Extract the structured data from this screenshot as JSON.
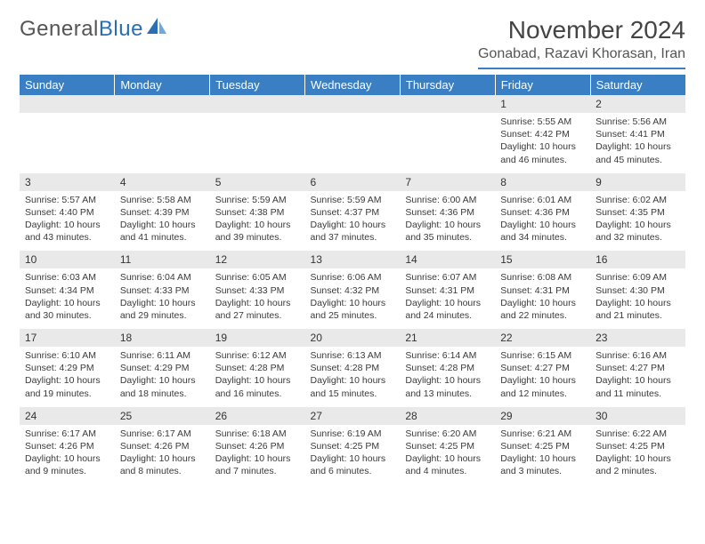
{
  "logo": {
    "text_gray": "General",
    "text_blue": "Blue"
  },
  "title": "November 2024",
  "location": "Gonabad, Razavi Khorasan, Iran",
  "colors": {
    "header_bg": "#3a7fc4",
    "header_text": "#ffffff",
    "daynum_bg": "#e9e9e9",
    "border": "#b8b8b8",
    "text": "#3a3a3a"
  },
  "weekdays": [
    "Sunday",
    "Monday",
    "Tuesday",
    "Wednesday",
    "Thursday",
    "Friday",
    "Saturday"
  ],
  "weeks": [
    [
      {
        "n": "",
        "sr": "",
        "ss": "",
        "dl": ""
      },
      {
        "n": "",
        "sr": "",
        "ss": "",
        "dl": ""
      },
      {
        "n": "",
        "sr": "",
        "ss": "",
        "dl": ""
      },
      {
        "n": "",
        "sr": "",
        "ss": "",
        "dl": ""
      },
      {
        "n": "",
        "sr": "",
        "ss": "",
        "dl": ""
      },
      {
        "n": "1",
        "sr": "Sunrise: 5:55 AM",
        "ss": "Sunset: 4:42 PM",
        "dl": "Daylight: 10 hours and 46 minutes."
      },
      {
        "n": "2",
        "sr": "Sunrise: 5:56 AM",
        "ss": "Sunset: 4:41 PM",
        "dl": "Daylight: 10 hours and 45 minutes."
      }
    ],
    [
      {
        "n": "3",
        "sr": "Sunrise: 5:57 AM",
        "ss": "Sunset: 4:40 PM",
        "dl": "Daylight: 10 hours and 43 minutes."
      },
      {
        "n": "4",
        "sr": "Sunrise: 5:58 AM",
        "ss": "Sunset: 4:39 PM",
        "dl": "Daylight: 10 hours and 41 minutes."
      },
      {
        "n": "5",
        "sr": "Sunrise: 5:59 AM",
        "ss": "Sunset: 4:38 PM",
        "dl": "Daylight: 10 hours and 39 minutes."
      },
      {
        "n": "6",
        "sr": "Sunrise: 5:59 AM",
        "ss": "Sunset: 4:37 PM",
        "dl": "Daylight: 10 hours and 37 minutes."
      },
      {
        "n": "7",
        "sr": "Sunrise: 6:00 AM",
        "ss": "Sunset: 4:36 PM",
        "dl": "Daylight: 10 hours and 35 minutes."
      },
      {
        "n": "8",
        "sr": "Sunrise: 6:01 AM",
        "ss": "Sunset: 4:36 PM",
        "dl": "Daylight: 10 hours and 34 minutes."
      },
      {
        "n": "9",
        "sr": "Sunrise: 6:02 AM",
        "ss": "Sunset: 4:35 PM",
        "dl": "Daylight: 10 hours and 32 minutes."
      }
    ],
    [
      {
        "n": "10",
        "sr": "Sunrise: 6:03 AM",
        "ss": "Sunset: 4:34 PM",
        "dl": "Daylight: 10 hours and 30 minutes."
      },
      {
        "n": "11",
        "sr": "Sunrise: 6:04 AM",
        "ss": "Sunset: 4:33 PM",
        "dl": "Daylight: 10 hours and 29 minutes."
      },
      {
        "n": "12",
        "sr": "Sunrise: 6:05 AM",
        "ss": "Sunset: 4:33 PM",
        "dl": "Daylight: 10 hours and 27 minutes."
      },
      {
        "n": "13",
        "sr": "Sunrise: 6:06 AM",
        "ss": "Sunset: 4:32 PM",
        "dl": "Daylight: 10 hours and 25 minutes."
      },
      {
        "n": "14",
        "sr": "Sunrise: 6:07 AM",
        "ss": "Sunset: 4:31 PM",
        "dl": "Daylight: 10 hours and 24 minutes."
      },
      {
        "n": "15",
        "sr": "Sunrise: 6:08 AM",
        "ss": "Sunset: 4:31 PM",
        "dl": "Daylight: 10 hours and 22 minutes."
      },
      {
        "n": "16",
        "sr": "Sunrise: 6:09 AM",
        "ss": "Sunset: 4:30 PM",
        "dl": "Daylight: 10 hours and 21 minutes."
      }
    ],
    [
      {
        "n": "17",
        "sr": "Sunrise: 6:10 AM",
        "ss": "Sunset: 4:29 PM",
        "dl": "Daylight: 10 hours and 19 minutes."
      },
      {
        "n": "18",
        "sr": "Sunrise: 6:11 AM",
        "ss": "Sunset: 4:29 PM",
        "dl": "Daylight: 10 hours and 18 minutes."
      },
      {
        "n": "19",
        "sr": "Sunrise: 6:12 AM",
        "ss": "Sunset: 4:28 PM",
        "dl": "Daylight: 10 hours and 16 minutes."
      },
      {
        "n": "20",
        "sr": "Sunrise: 6:13 AM",
        "ss": "Sunset: 4:28 PM",
        "dl": "Daylight: 10 hours and 15 minutes."
      },
      {
        "n": "21",
        "sr": "Sunrise: 6:14 AM",
        "ss": "Sunset: 4:28 PM",
        "dl": "Daylight: 10 hours and 13 minutes."
      },
      {
        "n": "22",
        "sr": "Sunrise: 6:15 AM",
        "ss": "Sunset: 4:27 PM",
        "dl": "Daylight: 10 hours and 12 minutes."
      },
      {
        "n": "23",
        "sr": "Sunrise: 6:16 AM",
        "ss": "Sunset: 4:27 PM",
        "dl": "Daylight: 10 hours and 11 minutes."
      }
    ],
    [
      {
        "n": "24",
        "sr": "Sunrise: 6:17 AM",
        "ss": "Sunset: 4:26 PM",
        "dl": "Daylight: 10 hours and 9 minutes."
      },
      {
        "n": "25",
        "sr": "Sunrise: 6:17 AM",
        "ss": "Sunset: 4:26 PM",
        "dl": "Daylight: 10 hours and 8 minutes."
      },
      {
        "n": "26",
        "sr": "Sunrise: 6:18 AM",
        "ss": "Sunset: 4:26 PM",
        "dl": "Daylight: 10 hours and 7 minutes."
      },
      {
        "n": "27",
        "sr": "Sunrise: 6:19 AM",
        "ss": "Sunset: 4:25 PM",
        "dl": "Daylight: 10 hours and 6 minutes."
      },
      {
        "n": "28",
        "sr": "Sunrise: 6:20 AM",
        "ss": "Sunset: 4:25 PM",
        "dl": "Daylight: 10 hours and 4 minutes."
      },
      {
        "n": "29",
        "sr": "Sunrise: 6:21 AM",
        "ss": "Sunset: 4:25 PM",
        "dl": "Daylight: 10 hours and 3 minutes."
      },
      {
        "n": "30",
        "sr": "Sunrise: 6:22 AM",
        "ss": "Sunset: 4:25 PM",
        "dl": "Daylight: 10 hours and 2 minutes."
      }
    ]
  ]
}
